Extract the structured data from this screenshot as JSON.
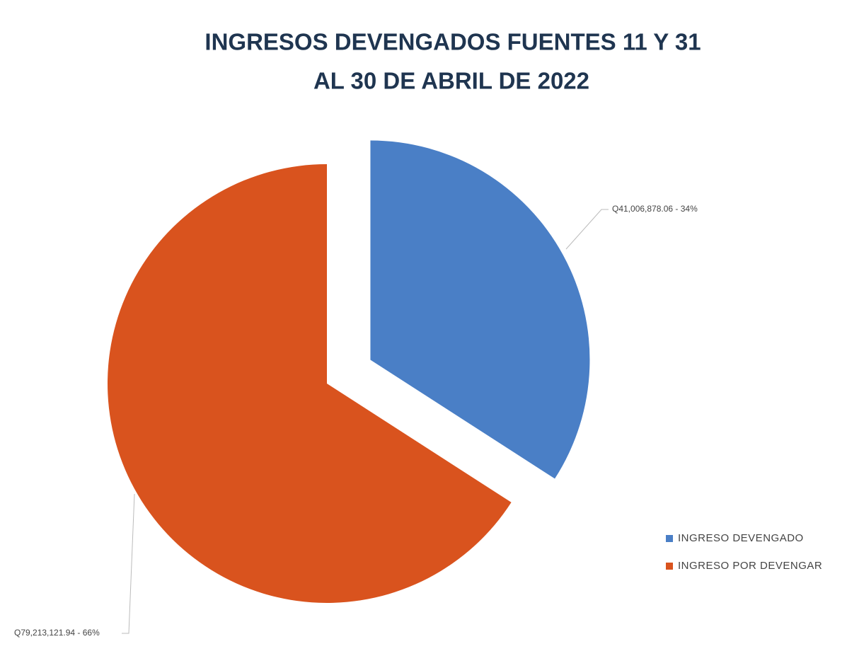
{
  "chart_data": {
    "type": "pie",
    "title": [
      "INGRESOS DEVENGADOS FUENTES 11 Y 31",
      "AL 30 DE ABRIL DE 2022"
    ],
    "categories": [
      "INGRESO DEVENGADO",
      "INGRESO POR DEVENGAR"
    ],
    "values": [
      41006878.06,
      79213121.94
    ],
    "value_labels": [
      "Q41,006,878.06 - 34%",
      "Q79,213,121.94 - 66%"
    ],
    "colors": [
      "#4a7fc6",
      "#d9531e"
    ],
    "explode": [
      true,
      false
    ],
    "legend": "right"
  }
}
